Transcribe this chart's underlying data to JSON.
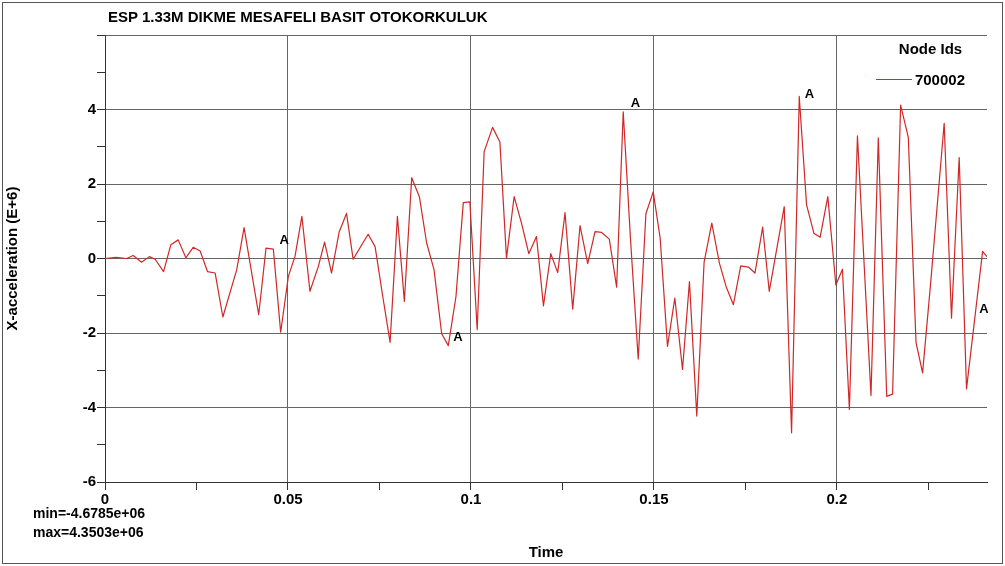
{
  "chart_data": {
    "type": "line",
    "title": "ESP 1.33M DIKME MESAFELI BASIT OTOKORKULUK",
    "xlabel": "Time",
    "ylabel": "X-acceleration (E+6)",
    "legend_title": "Node Ids",
    "legend": "top right",
    "grid": true,
    "marker": "none",
    "line_style": "solid",
    "xlim": [
      0,
      0.241
    ],
    "ylim": [
      -6,
      6
    ],
    "xticks": [
      0,
      {
        "value": 0.025,
        "label": null
      },
      0.05,
      {
        "value": 0.075,
        "label": null
      },
      0.1,
      {
        "value": 0.125,
        "label": null
      },
      0.15,
      {
        "value": 0.175,
        "label": null
      },
      0.2,
      {
        "value": 0.225,
        "label": null
      }
    ],
    "yticks": [
      -6,
      {
        "value": -5,
        "label": null
      },
      -4,
      {
        "value": -3,
        "label": null
      },
      -2,
      {
        "value": -1,
        "label": null
      },
      0,
      {
        "value": 1,
        "label": null
      },
      2,
      {
        "value": 3,
        "label": null
      },
      4,
      {
        "value": 5,
        "label": null
      },
      {
        "value": 6,
        "label": null
      }
    ],
    "annotations": [
      {
        "text": "A",
        "x": 0.0465,
        "y": 0.28
      },
      {
        "text": "A",
        "x": 0.094,
        "y": -2.34
      },
      {
        "text": "A",
        "x": 0.1425,
        "y": 3.94
      },
      {
        "text": "A",
        "x": 0.19,
        "y": 4.2
      },
      {
        "text": "A",
        "x": 0.2377,
        "y": -1.57
      },
      "min=-4.6785e+06",
      "max=4.3503e+06"
    ],
    "series": [
      {
        "name": "700002",
        "color": "#d02828",
        "x": [
          0,
          0.003,
          0.0059,
          0.0077,
          0.01,
          0.0121,
          0.0137,
          0.016,
          0.018,
          0.02,
          0.0221,
          0.0241,
          0.026,
          0.028,
          0.0301,
          0.0322,
          0.036,
          0.038,
          0.042,
          0.044,
          0.046,
          0.048,
          0.0501,
          0.0519,
          0.0538,
          0.056,
          0.0583,
          0.06,
          0.0619,
          0.064,
          0.066,
          0.0678,
          0.0719,
          0.0738,
          0.0759,
          0.0779,
          0.0799,
          0.0818,
          0.0838,
          0.0859,
          0.0879,
          0.0899,
          0.092,
          0.0938,
          0.0959,
          0.0979,
          0.0997,
          0.1017,
          0.1036,
          0.1059,
          0.1079,
          0.1097,
          0.1118,
          0.1138,
          0.1158,
          0.1179,
          0.1198,
          0.1218,
          0.1237,
          0.1257,
          0.1278,
          0.1298,
          0.1319,
          0.1339,
          0.1357,
          0.1378,
          0.1398,
          0.1416,
          0.1436,
          0.1457,
          0.1478,
          0.1498,
          0.1517,
          0.1537,
          0.1557,
          0.1578,
          0.1597,
          0.1617,
          0.1637,
          0.1658,
          0.1679,
          0.1697,
          0.1717,
          0.1737,
          0.1758,
          0.1776,
          0.1797,
          0.1815,
          0.1856,
          0.1876,
          0.1897,
          0.1917,
          0.1937,
          0.1954,
          0.1975,
          0.1997,
          0.2015,
          0.2034,
          0.2056,
          0.2093,
          0.2113,
          0.2136,
          0.2152,
          0.2174,
          0.2195,
          0.2216,
          0.2234,
          0.2256,
          0.2293,
          0.2313,
          0.2334,
          0.2354,
          0.2398,
          0.241
        ],
        "values": [
          0,
          0.03,
          0,
          0.08,
          -0.1,
          0.05,
          -0.02,
          -0.35,
          0.37,
          0.5,
          0.02,
          0.3,
          0.2,
          -0.35,
          -0.39,
          -1.57,
          -0.3,
          0.83,
          -1.51,
          0.28,
          0.25,
          -1.98,
          -0.48,
          0.05,
          1.13,
          -0.88,
          -0.21,
          0.44,
          -0.39,
          0.72,
          1.21,
          -0.02,
          0.65,
          0.32,
          -1.02,
          -2.25,
          1.13,
          -1.15,
          2.17,
          1.66,
          0.41,
          -0.3,
          -2.02,
          -2.34,
          -1.02,
          1.5,
          1.52,
          -1.91,
          2.87,
          3.52,
          3.13,
          0.01,
          1.66,
          0.95,
          0.13,
          0.59,
          -1.27,
          0.13,
          -0.38,
          1.23,
          -1.36,
          0.88,
          -0.14,
          0.72,
          0.7,
          0.52,
          -0.77,
          3.94,
          0.5,
          -2.7,
          1.2,
          1.79,
          0.54,
          -2.36,
          -1.06,
          -2.98,
          -0.62,
          -4.23,
          -0.1,
          0.95,
          -0.13,
          -0.75,
          -1.24,
          -0.2,
          -0.23,
          -0.39,
          0.84,
          -0.88,
          1.39,
          -4.68,
          4.35,
          1.44,
          0.68,
          0.57,
          1.66,
          -0.71,
          -0.29,
          -4.05,
          3.29,
          -3.68,
          3.24,
          -3.7,
          -3.64,
          4.12,
          3.25,
          -2.25,
          -3.07,
          -0.66,
          3.63,
          -1.6,
          2.71,
          -3.5,
          0.19,
          0.05
        ]
      }
    ]
  }
}
